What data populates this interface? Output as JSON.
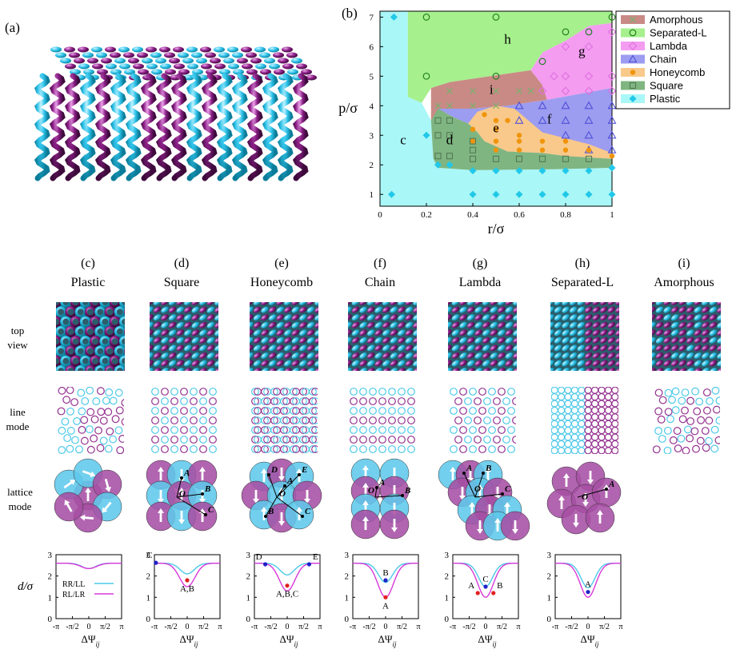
{
  "panels": {
    "a": "(a)",
    "b": "(b)",
    "columns": [
      {
        "letter": "(c)",
        "title": "Plastic"
      },
      {
        "letter": "(d)",
        "title": "Square"
      },
      {
        "letter": "(e)",
        "title": "Honeycomb"
      },
      {
        "letter": "(f)",
        "title": "Chain"
      },
      {
        "letter": "(g)",
        "title": "Lambda"
      },
      {
        "letter": "(h)",
        "title": "Separated-L"
      },
      {
        "letter": "(i)",
        "title": "Amorphous"
      }
    ],
    "row_labels": {
      "top_view": [
        "top",
        "view"
      ],
      "line_mode": [
        "line",
        "mode"
      ],
      "lattice_mode": [
        "lattice",
        "mode"
      ]
    }
  },
  "colors": {
    "cyan": "#4cc9e8",
    "purple": "#93308f",
    "amorphous": "#c98a86",
    "separated_l": "#a6f08d",
    "lambda": "#f39cf0",
    "chain": "#9c9cf0",
    "honeycomb": "#f8c98a",
    "square": "#7fb581",
    "plastic": "#a9f7f7"
  },
  "chart_data": [
    {
      "type": "phase-diagram",
      "xlabel": "r/σ",
      "ylabel": "p/σ",
      "xlim": [
        0,
        1
      ],
      "ylim": [
        0.6,
        7.2
      ],
      "xticks": [
        "0",
        "0.2",
        "0.4",
        "0.6",
        "0.8",
        "1"
      ],
      "yticks": [
        "1",
        "2",
        "3",
        "4",
        "5",
        "6",
        "7"
      ],
      "legend_position": "top-right",
      "legend": [
        {
          "label": "Amorphous",
          "marker": "x",
          "color": "#7fae6f"
        },
        {
          "label": "Separated-L",
          "marker": "circle-open",
          "color": "#1a7a1a"
        },
        {
          "label": "Lambda",
          "marker": "diamond-open",
          "color": "#e070e0"
        },
        {
          "label": "Chain",
          "marker": "triangle-open",
          "color": "#5050d8"
        },
        {
          "label": "Honeycomb",
          "marker": "circle-filled",
          "color": "#f0940a"
        },
        {
          "label": "Square",
          "marker": "square-open",
          "color": "#557a55"
        },
        {
          "label": "Plastic",
          "marker": "diamond-filled",
          "color": "#22c8e8"
        }
      ],
      "region_labels": [
        {
          "text": "c",
          "x": 0.1,
          "y": 2.7
        },
        {
          "text": "d",
          "x": 0.3,
          "y": 2.7
        },
        {
          "text": "e",
          "x": 0.5,
          "y": 3.1
        },
        {
          "text": "f",
          "x": 0.73,
          "y": 3.4
        },
        {
          "text": "g",
          "x": 0.87,
          "y": 5.7
        },
        {
          "text": "h",
          "x": 0.55,
          "y": 6.1
        },
        {
          "text": "i",
          "x": 0.48,
          "y": 4.4
        }
      ],
      "regions": [
        {
          "phase": "Plastic",
          "points": [
            [
              0,
              0.6
            ],
            [
              1,
              0.6
            ],
            [
              1,
              1.9
            ],
            [
              0.75,
              1.85
            ],
            [
              0.4,
              1.82
            ],
            [
              0.25,
              1.9
            ],
            [
              0.23,
              2.2
            ],
            [
              0.22,
              3.5
            ],
            [
              0.18,
              4.1
            ],
            [
              0.12,
              4.3
            ],
            [
              0.12,
              7.2
            ],
            [
              0,
              7.2
            ]
          ]
        },
        {
          "phase": "Separated-L",
          "points": [
            [
              0.12,
              7.2
            ],
            [
              1,
              7.2
            ],
            [
              1,
              6.8
            ],
            [
              0.9,
              6.7
            ],
            [
              0.8,
              6.2
            ],
            [
              0.7,
              5.8
            ],
            [
              0.65,
              5.2
            ],
            [
              0.3,
              4.8
            ],
            [
              0.22,
              4.6
            ],
            [
              0.18,
              4.1
            ],
            [
              0.12,
              4.3
            ]
          ]
        },
        {
          "phase": "Amorphous",
          "points": [
            [
              0.22,
              4.6
            ],
            [
              0.3,
              4.8
            ],
            [
              0.65,
              5.2
            ],
            [
              0.7,
              4.7
            ],
            [
              0.72,
              4.2
            ],
            [
              0.55,
              4.0
            ],
            [
              0.4,
              3.9
            ],
            [
              0.3,
              3.9
            ],
            [
              0.22,
              3.5
            ]
          ]
        },
        {
          "phase": "Lambda",
          "points": [
            [
              0.65,
              5.2
            ],
            [
              0.7,
              5.8
            ],
            [
              0.8,
              6.2
            ],
            [
              0.9,
              6.7
            ],
            [
              1,
              6.8
            ],
            [
              1,
              4.6
            ],
            [
              0.72,
              4.2
            ],
            [
              0.7,
              4.7
            ]
          ]
        },
        {
          "phase": "Chain",
          "points": [
            [
              0.25,
              3.9
            ],
            [
              0.4,
              3.9
            ],
            [
              0.55,
              4.0
            ],
            [
              0.72,
              4.2
            ],
            [
              1,
              4.6
            ],
            [
              1,
              2.2
            ],
            [
              0.8,
              2.3
            ],
            [
              0.7,
              2.4
            ],
            [
              0.55,
              2.45
            ],
            [
              0.45,
              2.8
            ],
            [
              0.42,
              3.1
            ],
            [
              0.38,
              3.4
            ],
            [
              0.32,
              3.6
            ]
          ]
        },
        {
          "phase": "Honeycomb",
          "points": [
            [
              0.38,
              3.4
            ],
            [
              0.42,
              3.8
            ],
            [
              0.5,
              4.0
            ],
            [
              0.58,
              3.9
            ],
            [
              0.7,
              3.1
            ],
            [
              0.8,
              2.9
            ],
            [
              0.9,
              2.7
            ],
            [
              1,
              2.4
            ],
            [
              1,
              2.2
            ],
            [
              0.8,
              2.3
            ],
            [
              0.7,
              2.4
            ],
            [
              0.55,
              2.45
            ],
            [
              0.45,
              2.8
            ],
            [
              0.42,
              3.1
            ]
          ]
        },
        {
          "phase": "Square",
          "points": [
            [
              0.23,
              2.2
            ],
            [
              0.25,
              1.9
            ],
            [
              0.4,
              1.82
            ],
            [
              0.75,
              1.85
            ],
            [
              1,
              1.9
            ],
            [
              1,
              2.2
            ],
            [
              0.8,
              2.3
            ],
            [
              0.7,
              2.4
            ],
            [
              0.55,
              2.45
            ],
            [
              0.45,
              2.8
            ],
            [
              0.42,
              3.1
            ],
            [
              0.38,
              3.4
            ],
            [
              0.32,
              3.6
            ],
            [
              0.25,
              3.9
            ],
            [
              0.22,
              3.5
            ]
          ]
        }
      ],
      "points": [
        {
          "phase": "Plastic",
          "xy": [
            [
              0.05,
              1
            ],
            [
              0.4,
              1
            ],
            [
              0.5,
              1
            ],
            [
              0.6,
              1
            ],
            [
              0.7,
              1
            ],
            [
              0.8,
              1
            ],
            [
              0.9,
              1
            ],
            [
              1,
              1
            ],
            [
              0.25,
              2
            ],
            [
              0.3,
              2
            ],
            [
              0.4,
              1.8
            ],
            [
              0.5,
              1.8
            ],
            [
              0.6,
              1.8
            ],
            [
              0.7,
              1.8
            ],
            [
              0.8,
              1.8
            ],
            [
              0.9,
              1.8
            ],
            [
              1,
              1.9
            ],
            [
              0.2,
              3
            ],
            [
              0.06,
              7
            ]
          ]
        },
        {
          "phase": "Separated-L",
          "xy": [
            [
              0.2,
              7
            ],
            [
              0.5,
              7
            ],
            [
              1,
              7
            ],
            [
              0.8,
              6.5
            ],
            [
              0.2,
              5
            ],
            [
              0.5,
              5
            ],
            [
              0.7,
              5.5
            ],
            [
              0.9,
              6.5
            ]
          ]
        },
        {
          "phase": "Lambda",
          "xy": [
            [
              0.8,
              6
            ],
            [
              0.9,
              6
            ],
            [
              1,
              6.5
            ],
            [
              0.75,
              5
            ],
            [
              0.8,
              5
            ],
            [
              0.9,
              5
            ],
            [
              1,
              5
            ],
            [
              0.7,
              4.5
            ],
            [
              0.8,
              4.5
            ],
            [
              0.9,
              4.5
            ],
            [
              1,
              4.5
            ]
          ]
        },
        {
          "phase": "Amorphous",
          "xy": [
            [
              0.25,
              4
            ],
            [
              0.3,
              4
            ],
            [
              0.4,
              4.5
            ],
            [
              0.5,
              4.5
            ],
            [
              0.6,
              4.5
            ],
            [
              0.4,
              4
            ],
            [
              0.5,
              4
            ],
            [
              0.3,
              4.5
            ],
            [
              0.65,
              4.5
            ]
          ]
        },
        {
          "phase": "Chain",
          "xy": [
            [
              0.6,
              4
            ],
            [
              0.7,
              4
            ],
            [
              0.8,
              4
            ],
            [
              0.9,
              4
            ],
            [
              1,
              4
            ],
            [
              0.6,
              3.5
            ],
            [
              0.7,
              3.5
            ],
            [
              0.8,
              3.5
            ],
            [
              0.9,
              3.5
            ],
            [
              1,
              3.5
            ],
            [
              0.8,
              3
            ],
            [
              0.9,
              3
            ],
            [
              1,
              3
            ],
            [
              0.9,
              2.5
            ],
            [
              1,
              2.5
            ]
          ]
        },
        {
          "phase": "Honeycomb",
          "xy": [
            [
              0.45,
              3.7
            ],
            [
              0.5,
              3.5
            ],
            [
              0.55,
              3.5
            ],
            [
              0.4,
              3.2
            ],
            [
              0.5,
              3.2
            ],
            [
              0.6,
              3
            ],
            [
              0.4,
              2.8
            ],
            [
              0.5,
              2.8
            ],
            [
              0.6,
              2.8
            ],
            [
              0.7,
              2.8
            ],
            [
              0.8,
              2.8
            ],
            [
              0.5,
              2.5
            ],
            [
              0.6,
              2.5
            ],
            [
              0.7,
              2.5
            ],
            [
              0.8,
              2.5
            ],
            [
              0.9,
              2.5
            ],
            [
              1,
              2.3
            ]
          ]
        },
        {
          "phase": "Square",
          "xy": [
            [
              0.25,
              3.5
            ],
            [
              0.3,
              3.5
            ],
            [
              0.25,
              3
            ],
            [
              0.3,
              3
            ],
            [
              0.25,
              2.3
            ],
            [
              0.3,
              2.3
            ],
            [
              0.4,
              2.8
            ],
            [
              0.4,
              2.5
            ],
            [
              0.4,
              2.2
            ],
            [
              0.5,
              2.2
            ],
            [
              0.6,
              2.2
            ],
            [
              0.7,
              2.2
            ],
            [
              0.8,
              2.2
            ],
            [
              0.9,
              2.2
            ]
          ]
        }
      ]
    },
    {
      "type": "line",
      "panel": "c",
      "ylabel": "d/σ",
      "xlabel": "ΔΨij",
      "ylim": [
        0,
        3
      ],
      "yticks": [
        "0",
        "1",
        "2",
        "3"
      ],
      "xticks": [
        "-π",
        "-π/2",
        "0",
        "π/2",
        "π"
      ],
      "legend": [
        "RR/LL",
        "RL/LR"
      ],
      "series": [
        {
          "name": "RR/LL",
          "color": "#4cc9e8",
          "dip": 0.25
        },
        {
          "name": "RL/LR",
          "color": "#d838d8",
          "dip": 0.25
        }
      ],
      "points": []
    },
    {
      "type": "line",
      "panel": "d",
      "ylim": [
        0,
        3
      ],
      "yticks": [
        "0",
        "1",
        "2",
        "3"
      ],
      "xticks": [
        "-π",
        "-π/2",
        "0",
        "π/2",
        "π"
      ],
      "series": [
        {
          "color": "#4cc9e8",
          "dip": 0.5
        },
        {
          "color": "#d838d8",
          "dip": 1.1
        }
      ],
      "points": [
        {
          "label": "C",
          "x": -3.0,
          "y": 2.62,
          "color": "#2020c8"
        },
        {
          "label": "A,B",
          "x": 0.0,
          "y": 1.8,
          "color": "#e02020"
        }
      ]
    },
    {
      "type": "line",
      "panel": "e",
      "ylim": [
        0,
        3
      ],
      "yticks": [
        "0",
        "1",
        "2",
        "3"
      ],
      "xticks": [
        "-π",
        "-π/2",
        "0",
        "π/2",
        "π"
      ],
      "series": [
        {
          "color": "#4cc9e8",
          "dip": 0.55
        },
        {
          "color": "#d838d8",
          "dip": 1.3
        }
      ],
      "points": [
        {
          "label": "D",
          "x": -2.1,
          "y": 2.55,
          "color": "#2020c8"
        },
        {
          "label": "E",
          "x": 2.1,
          "y": 2.55,
          "color": "#2020c8"
        },
        {
          "label": "A,B,C",
          "x": 0.0,
          "y": 1.55,
          "color": "#e02020"
        }
      ]
    },
    {
      "type": "line",
      "panel": "f",
      "ylim": [
        0,
        3
      ],
      "yticks": [
        "0",
        "1",
        "2",
        "3"
      ],
      "xticks": [
        "-π",
        "-π/2",
        "0",
        "π/2",
        "π"
      ],
      "series": [
        {
          "color": "#4cc9e8",
          "dip": 0.9
        },
        {
          "color": "#d838d8",
          "dip": 1.6
        }
      ],
      "points": [
        {
          "label": "B",
          "x": 0.0,
          "y": 1.8,
          "color": "#2020c8"
        },
        {
          "label": "A",
          "x": 0.0,
          "y": 1.0,
          "color": "#e02020"
        }
      ]
    },
    {
      "type": "line",
      "panel": "g",
      "ylim": [
        0,
        3
      ],
      "yticks": [
        "0",
        "1",
        "2",
        "3"
      ],
      "xticks": [
        "-π",
        "-π/2",
        "0",
        "π/2",
        "π"
      ],
      "series": [
        {
          "color": "#4cc9e8",
          "dip": 1.1
        },
        {
          "color": "#d838d8",
          "dip": 1.6
        }
      ],
      "points": [
        {
          "label": "C",
          "x": 0.0,
          "y": 1.5,
          "color": "#2020c8"
        },
        {
          "label": "A",
          "x": -0.75,
          "y": 1.2,
          "color": "#e02020"
        },
        {
          "label": "B",
          "x": 0.75,
          "y": 1.2,
          "color": "#e02020"
        }
      ]
    },
    {
      "type": "line",
      "panel": "h",
      "ylim": [
        0,
        3
      ],
      "yticks": [
        "0",
        "1",
        "2",
        "3"
      ],
      "xticks": [
        "-π",
        "-π/2",
        "0",
        "π/2",
        "π"
      ],
      "series": [
        {
          "color": "#4cc9e8",
          "dip": 1.15
        },
        {
          "color": "#d838d8",
          "dip": 1.6
        }
      ],
      "points": [
        {
          "label": "A",
          "x": 0.0,
          "y": 1.25,
          "color": "#2020c8"
        }
      ]
    }
  ]
}
